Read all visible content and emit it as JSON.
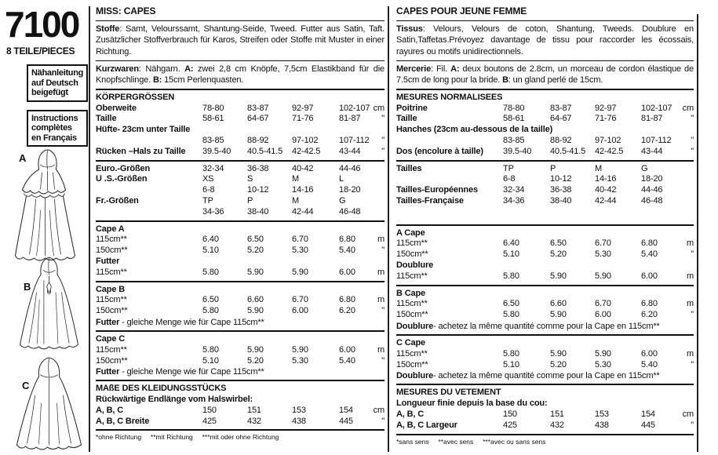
{
  "sidebar": {
    "pattern_number": "7100",
    "pieces": "8 TEILE/PIECES",
    "box_german": "Nähanleitung auf Deutsch beigefügt",
    "box_french": "Instructions complètes en Français",
    "figures": [
      "A",
      "B",
      "C"
    ]
  },
  "columns": [
    {
      "id": "de",
      "title": "MISS: CAPES",
      "paragraphs": [
        {
          "name": "fabric",
          "segments": [
            {
              "b": true,
              "t": "Stoffe"
            },
            {
              "t": ": Samt, Velourssamt, Shantung-Seide, Tweed. Futter aus Satin, Taft. Zusätzlicher Stoffverbrauch für Karos, Streifen oder Stoffe mit Muster in einer Richtung."
            }
          ]
        },
        {
          "name": "notions",
          "segments": [
            {
              "b": true,
              "t": "Kurzwaren"
            },
            {
              "t": ": Nähgarn. "
            },
            {
              "b": true,
              "t": "A:"
            },
            {
              "t": " zwei 2,8 cm Knöpfe, 7,5cm Elastikband für die Knopfschlinge. "
            },
            {
              "b": true,
              "t": "B:"
            },
            {
              "t": " 15cm Perlenquasten."
            }
          ]
        }
      ],
      "sections": [
        {
          "heading": "KÖRPERGRÖSSEN",
          "rows": [
            {
              "l": "Oberweite",
              "b": true,
              "v": [
                "78-80",
                "83-87",
                "92-97",
                "102-107"
              ],
              "u": "cm"
            },
            {
              "l": "Taille",
              "b": true,
              "v": [
                "58-61",
                "64-67",
                "71-76",
                "81-87"
              ],
              "u": "\""
            },
            {
              "l": "Hüfte- 23cm unter Taille",
              "b": true,
              "v": [],
              "u": ""
            },
            {
              "l": "",
              "v": [
                "83-85",
                "88-92",
                "97-102",
                "107-112"
              ],
              "u": "\""
            },
            {
              "l": "Rücken –Hals zu Taille",
              "b": true,
              "v": [
                "39.5-40",
                "40.5-41.5",
                "42-42.5",
                "43-44"
              ],
              "u": "\""
            }
          ]
        },
        {
          "rows": [
            {
              "l": "Euro.-Größen",
              "b": true,
              "v": [
                "32-34",
                "36-38",
                "40-42",
                "44-46"
              ],
              "u": ""
            },
            {
              "l": "U .S.-Größen",
              "b": true,
              "v": [
                "XS",
                "S",
                "M",
                "L"
              ],
              "u": ""
            },
            {
              "l": "",
              "v": [
                "6-8",
                "10-12",
                "14-16",
                "18-20"
              ],
              "u": ""
            },
            {
              "l": "Fr.-Größen",
              "b": true,
              "v": [
                "TP",
                "P",
                "M",
                "G"
              ],
              "u": ""
            },
            {
              "l": "",
              "v": [
                "34-36",
                "38-40",
                "42-44",
                "46-48"
              ],
              "u": ""
            }
          ]
        },
        {
          "heading": "Cape A",
          "rows": [
            {
              "l": "115cm**",
              "v": [
                "6.40",
                "6.50",
                "6.70",
                "6.80"
              ],
              "u": "m"
            },
            {
              "l": "150cm**",
              "v": [
                "5.10",
                "5.20",
                "5.30",
                "5.40"
              ],
              "u": "\""
            },
            {
              "l": "Futter",
              "b": true,
              "v": [],
              "u": ""
            },
            {
              "l": "115cm**",
              "v": [
                "5.80",
                "5.90",
                "5.90",
                "6.00"
              ],
              "u": "m"
            }
          ]
        },
        {
          "heading": "Cape B",
          "rows": [
            {
              "l": "115cm**",
              "v": [
                "6.50",
                "6.60",
                "6.70",
                "6.80"
              ],
              "u": "m"
            },
            {
              "l": "150cm**",
              "v": [
                "5.80",
                "5.90",
                "6.00",
                "6.20"
              ],
              "u": "\""
            }
          ],
          "note": [
            {
              "b": true,
              "t": "Futter"
            },
            {
              "t": " - gleiche Menge wie für Cape 115cm**"
            }
          ]
        },
        {
          "heading": "Cape C",
          "rows": [
            {
              "l": "115cm**",
              "v": [
                "5.80",
                "5.90",
                "5.90",
                "6.00"
              ],
              "u": "m"
            },
            {
              "l": "150cm**",
              "v": [
                "5.10",
                "5.20",
                "5.30",
                "5.40"
              ],
              "u": "\""
            }
          ],
          "note": [
            {
              "b": true,
              "t": "Futter"
            },
            {
              "t": " - gleiche Menge wie für Cape 115cm**"
            }
          ]
        },
        {
          "heading": "MAßE DES KLEIDUNGSSTÜCKS",
          "subheading": "Rückwärtige Endlänge vom Halswirbel:",
          "rows": [
            {
              "l": "A, B, C",
              "b": true,
              "v": [
                "150",
                "151",
                "153",
                "154"
              ],
              "u": "cm"
            },
            {
              "l": "A, B, C Breite",
              "b": true,
              "v": [
                "425",
                "432",
                "438",
                "445"
              ],
              "u": "\""
            }
          ]
        }
      ],
      "footnote": "*ohne Richtung     **mit Richtung     ***mit oder ohne Richtung"
    },
    {
      "id": "fr",
      "title": "CAPES POUR JEUNE FEMME",
      "paragraphs": [
        {
          "name": "fabric",
          "segments": [
            {
              "b": true,
              "t": "Tissus"
            },
            {
              "t": ": Velours, Velours de coton, Shantung, Tweeds. Doublure en Satin,Taffetas.Prévoyez davantage de tissu pour raccorder les écossais, rayures ou motifs unidirectionnels."
            }
          ]
        },
        {
          "name": "notions",
          "segments": [
            {
              "b": true,
              "t": "Mercerie"
            },
            {
              "t": ": Fil. "
            },
            {
              "b": true,
              "t": "A:"
            },
            {
              "t": " deux boutons de 2.8cm, un morceau de cordon élastique de 7.5cm de long pour la bride. "
            },
            {
              "b": true,
              "t": "B"
            },
            {
              "t": ": un gland perlé de 15cm."
            }
          ]
        }
      ],
      "sections": [
        {
          "heading": "MESURES NORMALISEES",
          "rows": [
            {
              "l": "Poitrine",
              "b": true,
              "v": [
                "78-80",
                "83-87",
                "92-97",
                "102-107"
              ],
              "u": "cm"
            },
            {
              "l": "Taille",
              "b": true,
              "v": [
                "58-61",
                "64-67",
                "71-76",
                "81-87"
              ],
              "u": "\""
            },
            {
              "l": "Hanches (23cm au-dessous de la taille)",
              "b": true,
              "v": [],
              "u": ""
            },
            {
              "l": "",
              "v": [
                "83-85",
                "88-92",
                "97-102",
                "107-112"
              ],
              "u": "\""
            },
            {
              "l": "Dos (encolure à taille)",
              "b": true,
              "v": [
                "39.5-40",
                "40.5-41.5",
                "42-42.5",
                "43-44"
              ],
              "u": "\""
            }
          ]
        },
        {
          "minh": 74,
          "rows": [
            {
              "l": "Tailles",
              "b": true,
              "v": [
                "TP",
                "P",
                "M",
                "G"
              ],
              "u": ""
            },
            {
              "l": "",
              "v": [
                "6-8",
                "10-12",
                "14-16",
                "18-20"
              ],
              "u": ""
            },
            {
              "l": "Tailles-Européennes",
              "b": true,
              "v": [
                "32-34",
                "36-38",
                "40-42",
                "44-46"
              ],
              "u": ""
            },
            {
              "l": "Tailles-Française",
              "b": true,
              "v": [
                "34-36",
                "38-40",
                "42-44",
                "46-48"
              ],
              "u": ""
            }
          ]
        },
        {
          "heading": "A Cape",
          "rows": [
            {
              "l": "115cm**",
              "v": [
                "6.40",
                "6.50",
                "6.70",
                "6.80"
              ],
              "u": "m"
            },
            {
              "l": "150cm**",
              "v": [
                "5.10",
                "5.20",
                "5.30",
                "5.40"
              ],
              "u": "\""
            },
            {
              "l": "Doublure",
              "b": true,
              "v": [],
              "u": ""
            },
            {
              "l": "115cm**",
              "v": [
                "5.80",
                "5.90",
                "5.90",
                "6.00"
              ],
              "u": "m"
            }
          ]
        },
        {
          "heading": "B Cape",
          "rows": [
            {
              "l": "115cm**",
              "v": [
                "6.50",
                "6.60",
                "6.70",
                "6.80"
              ],
              "u": "m"
            },
            {
              "l": "150cm**",
              "v": [
                "5.80",
                "5.90",
                "6.00",
                "6.20"
              ],
              "u": "\""
            }
          ],
          "note": [
            {
              "b": true,
              "t": "Doublure"
            },
            {
              "t": "- achetez la même quantité comme pour la Cape en 115cm**"
            }
          ]
        },
        {
          "heading": "C Cape",
          "rows": [
            {
              "l": "115cm**",
              "v": [
                "5.80",
                "5.90",
                "5.90",
                "6.00"
              ],
              "u": "m"
            },
            {
              "l": "150cm**",
              "v": [
                "5.10",
                "5.20",
                "5.30",
                "5.40"
              ],
              "u": "\""
            }
          ],
          "note": [
            {
              "b": true,
              "t": "Doublure"
            },
            {
              "t": "- achetez la même quantité comme pour la Cape en 115cm**"
            }
          ]
        },
        {
          "heading": "MESURES DU VETEMENT",
          "subheading": "Longueur finie depuis la base du cou:",
          "rows": [
            {
              "l": "A, B, C",
              "b": true,
              "v": [
                "150",
                "151",
                "153",
                "154"
              ],
              "u": "cm"
            },
            {
              "l": "A, B, C Largeur",
              "b": true,
              "v": [
                "425",
                "432",
                "438",
                "445"
              ],
              "u": "\""
            }
          ]
        }
      ],
      "footnote": "*sans sens     **avec sens     ***avec ou sans sens"
    }
  ],
  "colors": {
    "ink": "#111111",
    "paper": "#ffffff"
  }
}
